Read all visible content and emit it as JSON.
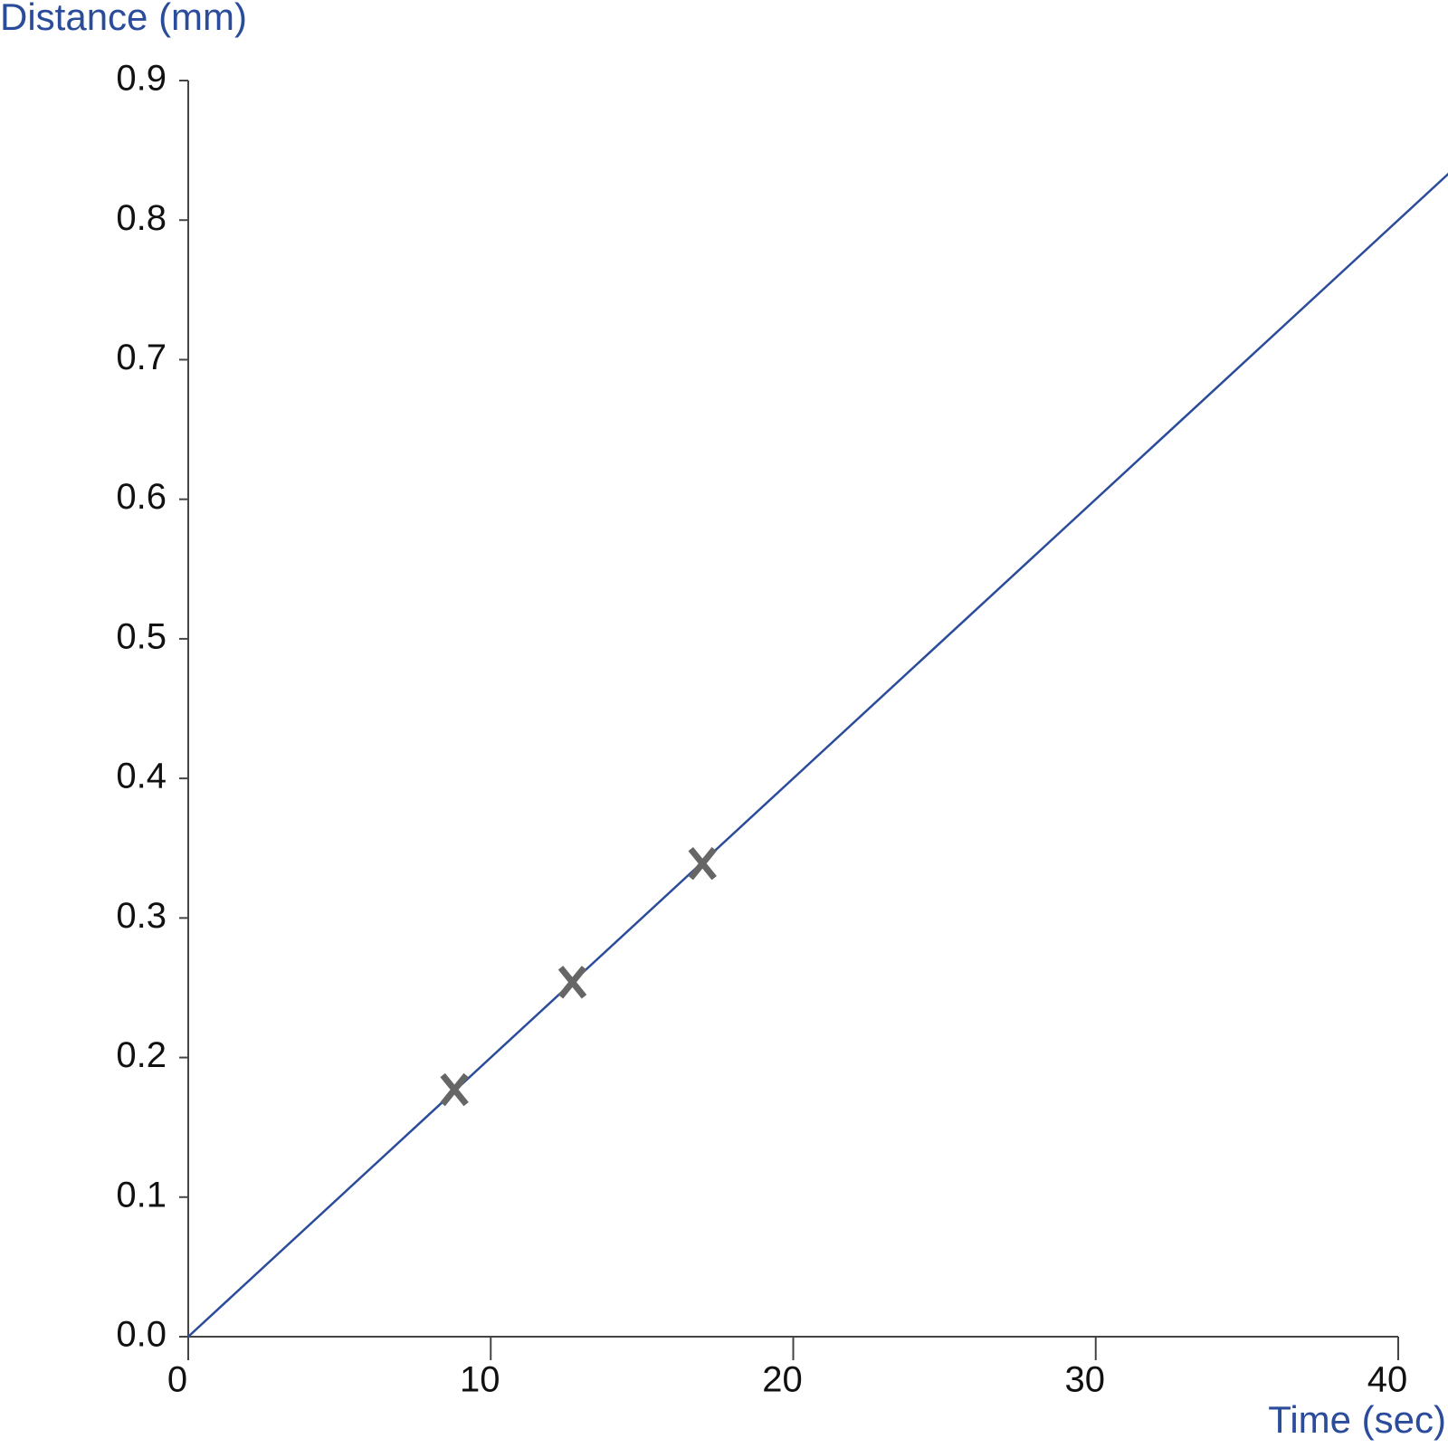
{
  "chart_data": {
    "type": "scatter",
    "y_label": "Distance (mm)",
    "x_label": "Time (sec)",
    "xlim": [
      0,
      40
    ],
    "ylim": [
      0,
      0.9
    ],
    "xticks": [
      0,
      10,
      20,
      30,
      40
    ],
    "yticks": [
      {
        "value": 0,
        "label": "0.0"
      },
      0.1,
      0.2,
      0.3,
      0.4,
      0.5,
      0.6,
      0.7,
      0.8,
      0.9
    ],
    "points": {
      "color": "#666666",
      "x": [
        8.8,
        12.7,
        17.0
      ],
      "values": [
        0.177,
        0.254,
        0.339
      ]
    },
    "line": {
      "color": "#2b4c9a",
      "x": [
        0,
        41.7
      ],
      "values": [
        0,
        0.834
      ]
    }
  }
}
